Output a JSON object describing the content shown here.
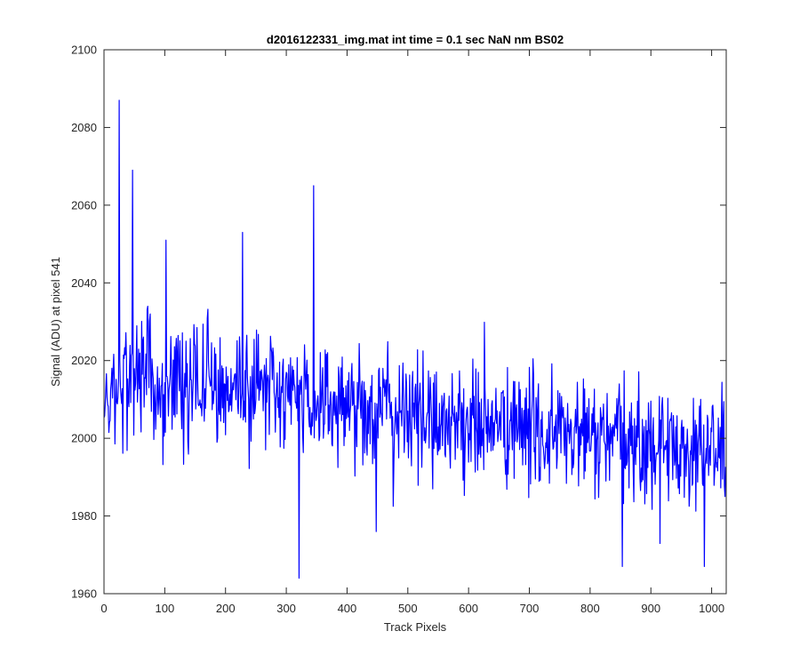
{
  "chart_data": {
    "type": "line",
    "title": "d2016122331_img.mat int time = 0.1 sec  NaN nm BS02",
    "xlabel": "Track Pixels",
    "ylabel": "Signal (ADU) at pixel 541",
    "xlim": [
      0,
      1024
    ],
    "ylim": [
      1960,
      2100
    ],
    "xticks": [
      0,
      100,
      200,
      300,
      400,
      500,
      600,
      700,
      800,
      900,
      1000
    ],
    "yticks": [
      1960,
      1980,
      2000,
      2020,
      2040,
      2060,
      2080,
      2100
    ],
    "grid": false,
    "legend": "none",
    "series_color": "#0000ff",
    "axes_color": "#262626",
    "n_points": 1024,
    "notable_points": [
      {
        "x": 25,
        "y": 2087
      },
      {
        "x": 47,
        "y": 2069
      },
      {
        "x": 345,
        "y": 2065
      },
      {
        "x": 228,
        "y": 2053
      },
      {
        "x": 102,
        "y": 2051
      },
      {
        "x": 321,
        "y": 1964
      },
      {
        "x": 448,
        "y": 1976
      },
      {
        "x": 853,
        "y": 1967
      },
      {
        "x": 988,
        "y": 1967
      }
    ],
    "trend": [
      {
        "x": 0,
        "y": 2013
      },
      {
        "x": 100,
        "y": 2015
      },
      {
        "x": 200,
        "y": 2014
      },
      {
        "x": 300,
        "y": 2011
      },
      {
        "x": 400,
        "y": 2009
      },
      {
        "x": 500,
        "y": 2006
      },
      {
        "x": 600,
        "y": 2004
      },
      {
        "x": 700,
        "y": 2002
      },
      {
        "x": 800,
        "y": 2000
      },
      {
        "x": 900,
        "y": 1998
      },
      {
        "x": 1024,
        "y": 1997
      }
    ],
    "noise_sd": 7.5
  }
}
